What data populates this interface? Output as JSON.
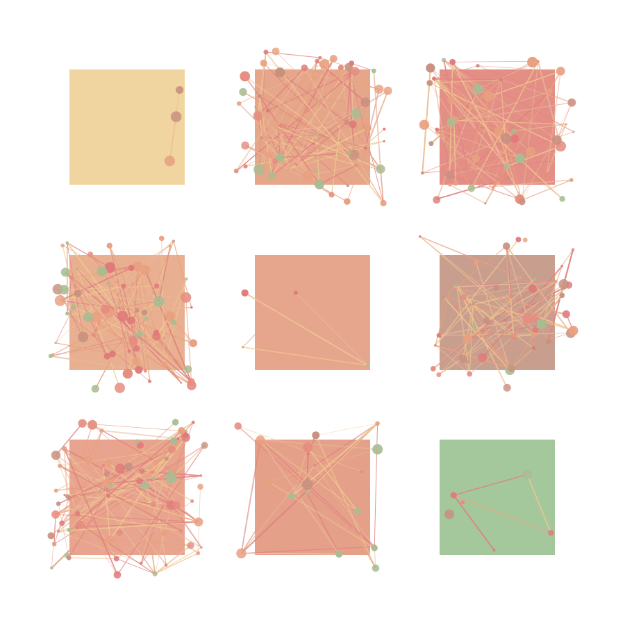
{
  "panels": [
    {
      "id": "r1c1",
      "fill": "#f0d5a0",
      "nodes": 3,
      "edge_density": "sparse"
    },
    {
      "id": "r1c2",
      "fill": "#e5a68a",
      "nodes": 60,
      "edge_density": "dense"
    },
    {
      "id": "r1c3",
      "fill": "#e48f86",
      "nodes": 55,
      "edge_density": "dense"
    },
    {
      "id": "r2c1",
      "fill": "#e8b090",
      "nodes": 70,
      "edge_density": "dense"
    },
    {
      "id": "r2c2",
      "fill": "#e6a68e",
      "nodes": 4,
      "edge_density": "sparse"
    },
    {
      "id": "r2c3",
      "fill": "#c89e8e",
      "nodes": 50,
      "edge_density": "dense"
    },
    {
      "id": "r3c1",
      "fill": "#e8a48e",
      "nodes": 75,
      "edge_density": "dense"
    },
    {
      "id": "r3c2",
      "fill": "#e5a08a",
      "nodes": 20,
      "edge_density": "medium"
    },
    {
      "id": "r3c3",
      "fill": "#a5c79c",
      "nodes": 6,
      "edge_density": "sparse"
    }
  ],
  "palette": {
    "node_colors": [
      "#e07a7a",
      "#e8a080",
      "#a8bc92",
      "#c8917f",
      "#e58d7f"
    ],
    "edge_colors": [
      "#e8a080",
      "#f0c890",
      "#e08080",
      "#e9b89a"
    ]
  }
}
